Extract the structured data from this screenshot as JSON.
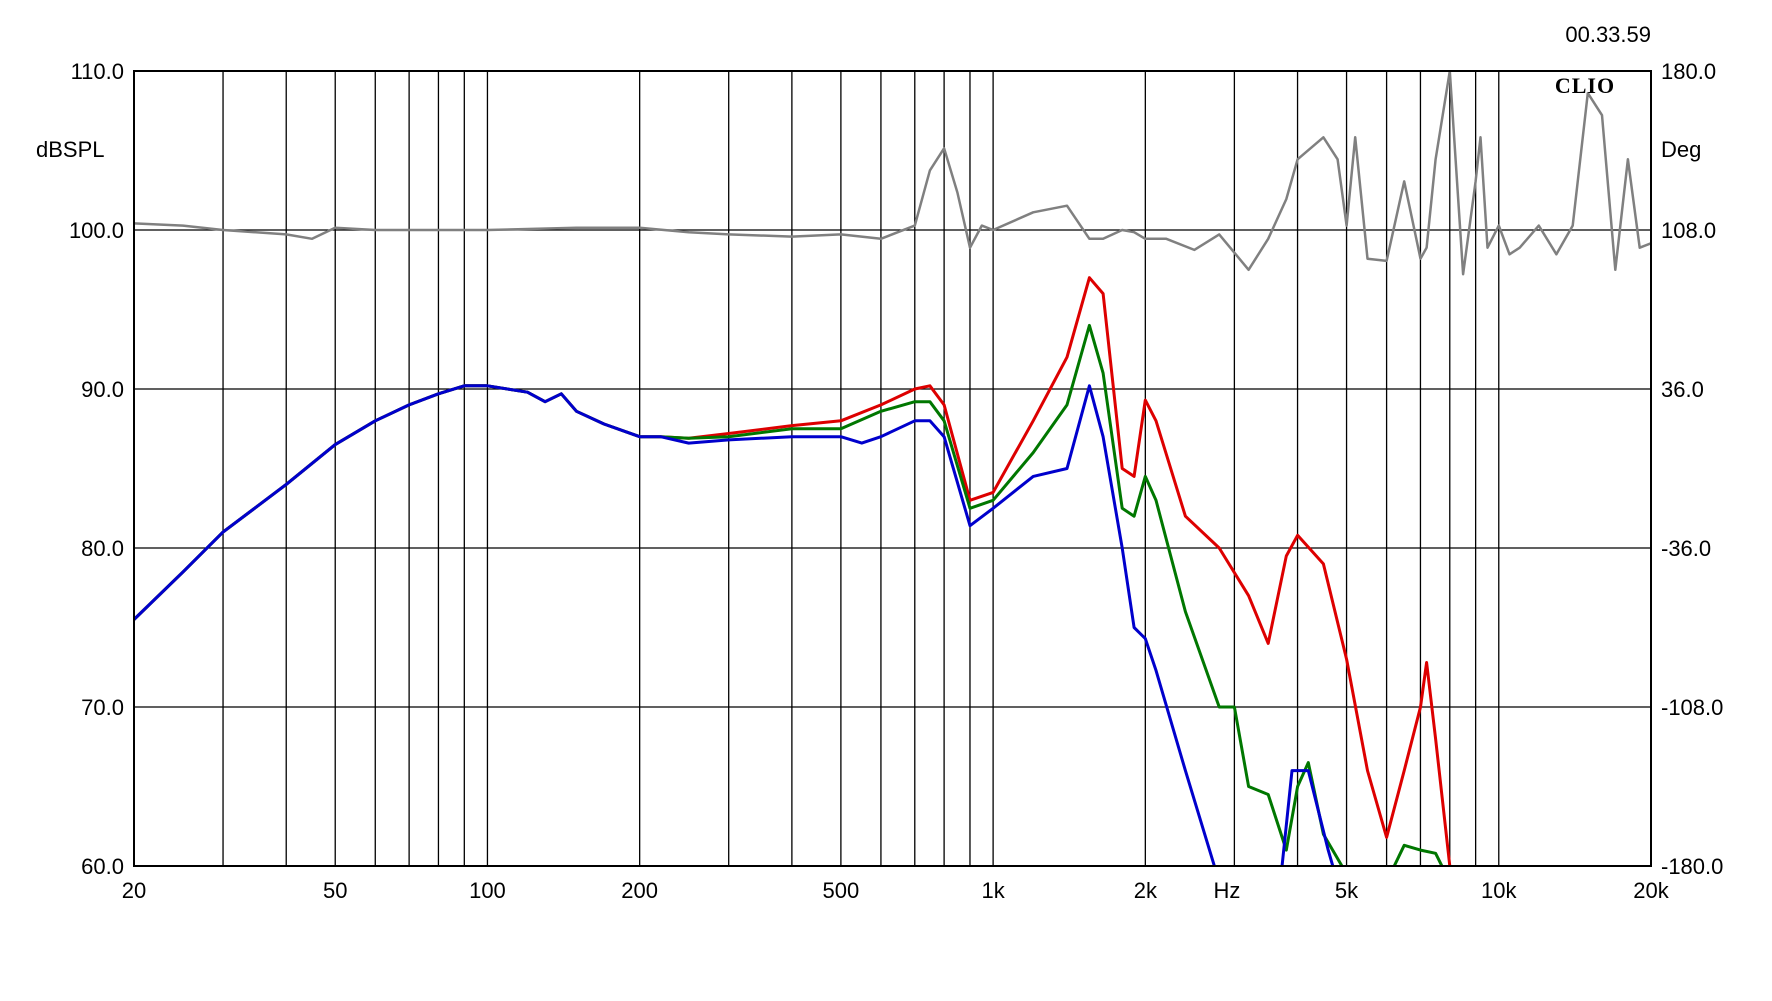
{
  "timestamp": "00.33.59",
  "logo_text": "CLIO",
  "chart_data": {
    "type": "line",
    "xscale": "log",
    "xlim": [
      20,
      20000
    ],
    "ylim": [
      60,
      110
    ],
    "y2lim": [
      -180,
      180
    ],
    "grid": true,
    "legend": "none",
    "ylabel": "dBSPL",
    "y2label": "Deg",
    "xunit": "Hz",
    "x_tick_labels": [
      {
        "v": 20,
        "t": "20"
      },
      {
        "v": 50,
        "t": "50"
      },
      {
        "v": 100,
        "t": "100"
      },
      {
        "v": 200,
        "t": "200"
      },
      {
        "v": 500,
        "t": "500"
      },
      {
        "v": 1000,
        "t": "1k"
      },
      {
        "v": 2000,
        "t": "2k"
      },
      {
        "v": 5000,
        "t": "5k"
      },
      {
        "v": 10000,
        "t": "10k"
      },
      {
        "v": 20000,
        "t": "20k"
      }
    ],
    "x_minor_grid": [
      30,
      40,
      60,
      70,
      80,
      90,
      300,
      400,
      600,
      700,
      800,
      900,
      3000,
      4000,
      6000,
      7000,
      8000,
      9000
    ],
    "y_ticks": [
      {
        "v": 110,
        "t": "110.0"
      },
      {
        "v": 100,
        "t": "100.0"
      },
      {
        "v": 90,
        "t": "90.0"
      },
      {
        "v": 80,
        "t": "80.0"
      },
      {
        "v": 70,
        "t": "70.0"
      },
      {
        "v": 60,
        "t": "60.0"
      }
    ],
    "y2_ticks": [
      {
        "v": 180,
        "t": "180.0"
      },
      {
        "v": 108,
        "t": "108.0"
      },
      {
        "v": 36,
        "t": "36.0"
      },
      {
        "v": -36,
        "t": "-36.0"
      },
      {
        "v": -108,
        "t": "-108.0"
      },
      {
        "v": -180,
        "t": "-180.0"
      }
    ],
    "series": [
      {
        "axis": "left",
        "color": "#dd0000",
        "x": [
          20,
          25,
          30,
          40,
          50,
          60,
          70,
          80,
          90,
          100,
          120,
          130,
          140,
          150,
          170,
          200,
          220,
          250,
          300,
          400,
          500,
          600,
          700,
          750,
          800,
          900,
          1000,
          1200,
          1400,
          1550,
          1650,
          1800,
          1900,
          2000,
          2100,
          2400,
          2800,
          3200,
          3500,
          3800,
          4000,
          4500,
          5000,
          5500,
          6000,
          6500,
          7000,
          7200,
          7500,
          8000
        ],
        "y": [
          75.5,
          78.5,
          81,
          84,
          86.5,
          88,
          89,
          89.7,
          90.2,
          90.2,
          89.8,
          89.2,
          89.7,
          88.6,
          87.8,
          87,
          87,
          86.9,
          87.2,
          87.7,
          88,
          89,
          90,
          90.2,
          89,
          83,
          83.5,
          88,
          92,
          97,
          96,
          85,
          84.5,
          89.3,
          88,
          82,
          80,
          77,
          74,
          79.5,
          80.8,
          79,
          73,
          66,
          61.8,
          66,
          70,
          72.8,
          68,
          60
        ]
      },
      {
        "axis": "left",
        "color": "#007700",
        "x": [
          20,
          25,
          30,
          40,
          50,
          60,
          70,
          80,
          90,
          100,
          120,
          130,
          140,
          150,
          170,
          200,
          220,
          250,
          300,
          400,
          500,
          600,
          700,
          750,
          800,
          900,
          1000,
          1200,
          1400,
          1550,
          1650,
          1800,
          1900,
          2000,
          2100,
          2400,
          2800,
          3000,
          3200,
          3500,
          3800,
          4000,
          4200,
          4500,
          5000,
          5500,
          6000,
          6500,
          7000,
          7500,
          8000
        ],
        "y": [
          75.5,
          78.5,
          81,
          84,
          86.5,
          88,
          89,
          89.7,
          90.2,
          90.2,
          89.8,
          89.2,
          89.7,
          88.6,
          87.8,
          87,
          87,
          86.9,
          87,
          87.5,
          87.5,
          88.6,
          89.2,
          89.2,
          88,
          82.5,
          83,
          86,
          89,
          94,
          91,
          82.5,
          82,
          84.5,
          83,
          76,
          70,
          70,
          65,
          64.5,
          61,
          65,
          66.5,
          62,
          59.5,
          57,
          59,
          61.3,
          61,
          60.8,
          59
        ]
      },
      {
        "axis": "left",
        "color": "#0000cc",
        "x": [
          20,
          25,
          30,
          40,
          50,
          60,
          70,
          80,
          90,
          100,
          120,
          130,
          140,
          150,
          170,
          200,
          220,
          250,
          300,
          400,
          500,
          550,
          600,
          700,
          750,
          800,
          900,
          1000,
          1200,
          1400,
          1550,
          1650,
          1800,
          1900,
          2000,
          2100,
          2400,
          2800,
          3200,
          3700,
          3900,
          4200,
          4600,
          5000
        ],
        "y": [
          75.5,
          78.5,
          81,
          84,
          86.5,
          88,
          89,
          89.7,
          90.2,
          90.2,
          89.8,
          89.2,
          89.7,
          88.6,
          87.8,
          87,
          87,
          86.6,
          86.8,
          87,
          87,
          86.6,
          87,
          88,
          88,
          87,
          81.4,
          82.5,
          84.5,
          85,
          90.2,
          87,
          80,
          75,
          74.3,
          72.3,
          66,
          59,
          57,
          59,
          66,
          66,
          61,
          57
        ]
      },
      {
        "axis": "right",
        "color": "#808080",
        "x": [
          20,
          25,
          30,
          40,
          45,
          50,
          60,
          80,
          100,
          150,
          200,
          250,
          300,
          400,
          500,
          600,
          700,
          750,
          800,
          850,
          900,
          950,
          1000,
          1200,
          1400,
          1550,
          1650,
          1800,
          1900,
          2000,
          2200,
          2500,
          2800,
          3200,
          3500,
          3800,
          4000,
          4500,
          4800,
          5000,
          5200,
          5500,
          6000,
          6500,
          7000,
          7200,
          7500,
          8000,
          8500,
          9000,
          9200,
          9500,
          10000,
          10500,
          11000,
          12000,
          13000,
          14000,
          15000,
          16000,
          17000,
          18000,
          19000,
          20000
        ],
        "y": [
          111,
          110,
          108,
          106,
          104,
          109,
          108,
          108,
          108,
          109,
          109,
          107,
          106,
          105,
          106,
          104,
          110,
          135,
          145,
          125,
          100,
          110,
          108,
          116,
          119,
          104,
          104,
          108,
          107,
          104,
          104,
          99,
          106,
          90,
          104,
          122,
          140,
          150,
          140,
          110,
          150,
          95,
          94,
          130,
          95,
          100,
          140,
          180,
          88,
          130,
          150,
          100,
          110,
          97,
          100,
          110,
          97,
          110,
          170,
          160,
          90,
          140,
          100,
          102
        ]
      }
    ]
  }
}
